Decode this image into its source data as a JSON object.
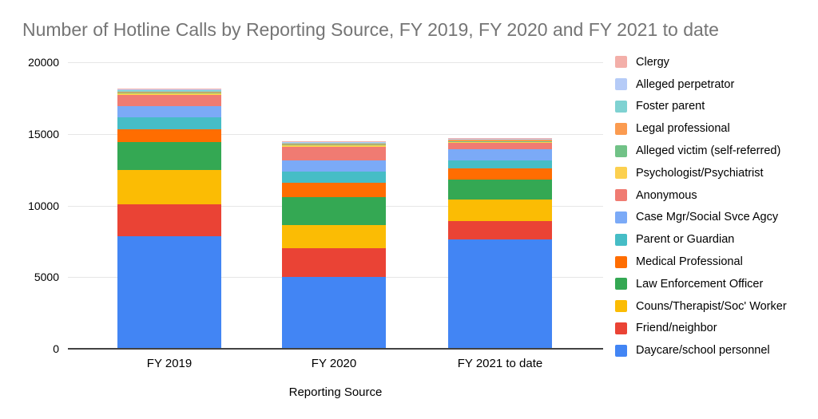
{
  "page": {
    "background_color": "#FFFFFF"
  },
  "chart_data": {
    "type": "bar",
    "stacked": true,
    "title": "Number of Hotline Calls by Reporting Source, FY 2019, FY 2020 and FY 2021 to date",
    "title_color": "#757575",
    "xlabel": "Reporting Source",
    "ylabel": "",
    "categories": [
      "FY 2019",
      "FY 2020",
      "FY 2021 to date"
    ],
    "ylim": [
      0,
      20000
    ],
    "yticks": [
      0,
      5000,
      10000,
      15000,
      20000
    ],
    "grid": true,
    "legend_position": "right",
    "axis_line_color": "#424242",
    "gridline_color": "#E6E6E6",
    "tick_label_color": "#000000",
    "series": [
      {
        "name": "Clergy",
        "color": "#F3AFA9",
        "values": [
          60,
          30,
          60
        ]
      },
      {
        "name": "Alleged perpetrator",
        "color": "#B5CBF7",
        "values": [
          60,
          50,
          30
        ]
      },
      {
        "name": "Foster parent",
        "color": "#7FD2D2",
        "values": [
          110,
          110,
          30
        ]
      },
      {
        "name": "Legal professional",
        "color": "#FB9B50",
        "values": [
          30,
          50,
          110
        ]
      },
      {
        "name": "Alleged victim (self-referred)",
        "color": "#71C287",
        "values": [
          60,
          50,
          30
        ]
      },
      {
        "name": "Psychologist/Psychiatrist",
        "color": "#FCD04F",
        "values": [
          140,
          110,
          80
        ]
      },
      {
        "name": "Anonymous",
        "color": "#F07B72",
        "values": [
          750,
          950,
          400
        ]
      },
      {
        "name": "Case Mgr/Social Svce Agcy",
        "color": "#7BAAF7",
        "values": [
          800,
          750,
          800
        ]
      },
      {
        "name": "Parent or Guardian",
        "color": "#46BDC6",
        "values": [
          850,
          780,
          550
        ]
      },
      {
        "name": "Medical Professional",
        "color": "#FF6D01",
        "values": [
          900,
          1000,
          800
        ]
      },
      {
        "name": "Law Enforcement Officer",
        "color": "#34A853",
        "values": [
          1950,
          1950,
          1400
        ]
      },
      {
        "name": "Couns/Therapist/Soc' Worker",
        "color": "#FBBC04",
        "values": [
          2350,
          1650,
          1500
        ]
      },
      {
        "name": "Friend/neighbor",
        "color": "#EA4335",
        "values": [
          2250,
          2000,
          1250
        ]
      },
      {
        "name": "Daycare/school personnel",
        "color": "#4285F4",
        "values": [
          7800,
          4950,
          7600
        ]
      }
    ],
    "series_note": "series listed in legend order (top of stack first); stacking bottom-to-top is the reverse",
    "totals": [
      18110,
      14430,
      14640
    ]
  }
}
